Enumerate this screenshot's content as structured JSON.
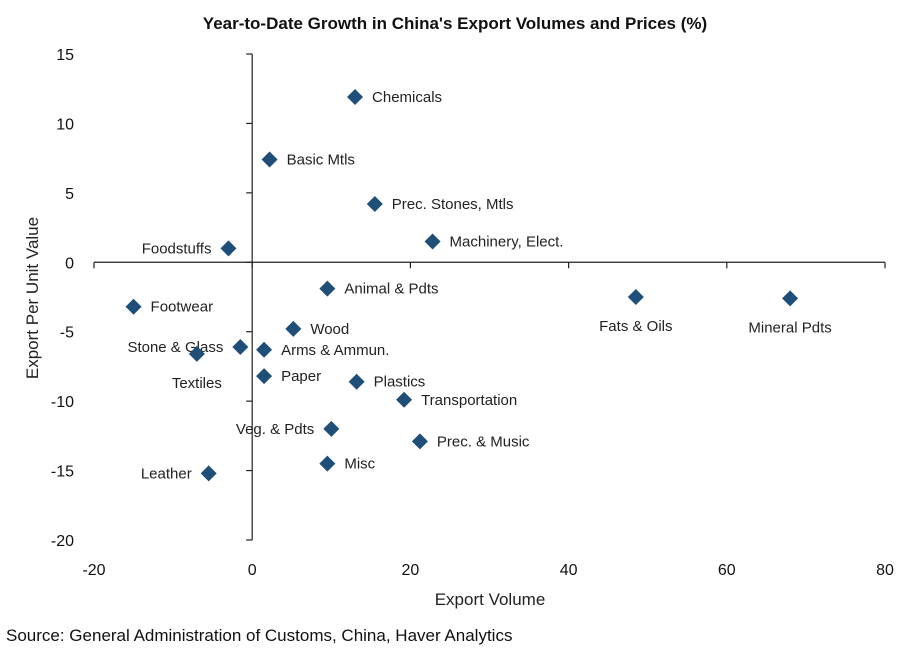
{
  "chart_data": {
    "type": "scatter",
    "title": "Year-to-Date Growth in China's Export Volumes and Prices (%)",
    "xlabel": "Export Volume",
    "ylabel": "Export Per Unit Value",
    "xlim": [
      -20,
      80
    ],
    "ylim": [
      -20,
      15
    ],
    "xticks": [
      -20,
      0,
      20,
      40,
      60,
      80
    ],
    "yticks": [
      15,
      10,
      5,
      0,
      -5,
      -10,
      -15,
      -20
    ],
    "marker_color": "#1f4e79",
    "grid": false,
    "legend": "none",
    "points": [
      {
        "label": "Chemicals",
        "x": 13,
        "y": 11.9,
        "side": "right"
      },
      {
        "label": "Basic Mtls",
        "x": 2.2,
        "y": 7.4,
        "side": "right"
      },
      {
        "label": "Prec. Stones, Mtls",
        "x": 15.5,
        "y": 4.2,
        "side": "right"
      },
      {
        "label": "Machinery, Elect.",
        "x": 22.8,
        "y": 1.5,
        "side": "right"
      },
      {
        "label": "Foodstuffs",
        "x": -3,
        "y": 1.0,
        "side": "left"
      },
      {
        "label": "Animal & Pdts",
        "x": 9.5,
        "y": -1.9,
        "side": "right"
      },
      {
        "label": "Footwear",
        "x": -15,
        "y": -3.2,
        "side": "right"
      },
      {
        "label": "Fats & Oils",
        "x": 48.5,
        "y": -2.5,
        "side": "below"
      },
      {
        "label": "Mineral Pdts",
        "x": 68,
        "y": -2.6,
        "side": "below"
      },
      {
        "label": "Wood",
        "x": 5.2,
        "y": -4.8,
        "side": "right"
      },
      {
        "label": "Stone & Glass",
        "x": -1.5,
        "y": -6.1,
        "side": "left"
      },
      {
        "label": "Arms & Ammun.",
        "x": 1.5,
        "y": -6.3,
        "side": "right"
      },
      {
        "label": "Textiles",
        "x": -7,
        "y": -6.6,
        "side": "below"
      },
      {
        "label": "Paper",
        "x": 1.5,
        "y": -8.2,
        "side": "right"
      },
      {
        "label": "Plastics",
        "x": 13.2,
        "y": -8.6,
        "side": "right"
      },
      {
        "label": "Transportation",
        "x": 19.2,
        "y": -9.9,
        "side": "right"
      },
      {
        "label": "Veg. & Pdts",
        "x": 10,
        "y": -12,
        "side": "left"
      },
      {
        "label": "Prec. & Music",
        "x": 21.2,
        "y": -12.9,
        "side": "right"
      },
      {
        "label": "Misc",
        "x": 9.5,
        "y": -14.5,
        "side": "right"
      },
      {
        "label": "Leather",
        "x": -5.5,
        "y": -15.2,
        "side": "left"
      }
    ]
  },
  "source": "Source: General Administration of Customs, China, Haver Analytics"
}
